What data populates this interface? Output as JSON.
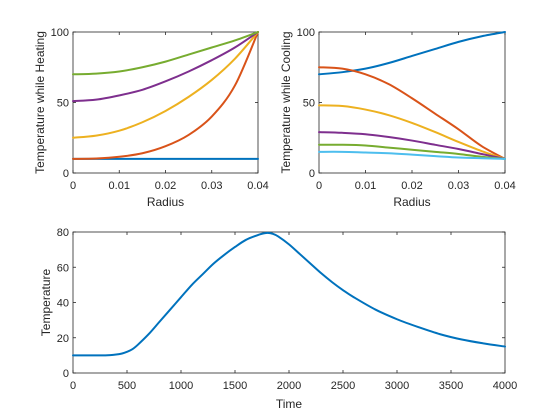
{
  "chart_data": [
    {
      "type": "line",
      "xlabel": "Radius",
      "ylabel": "Temperature while Heating",
      "xlim": [
        0,
        0.04
      ],
      "ylim": [
        0,
        100
      ],
      "xticks": [
        0,
        0.01,
        0.02,
        0.03,
        0.04
      ],
      "xtick_labels": [
        "0",
        "0.01",
        "0.02",
        "0.03",
        "0.04"
      ],
      "yticks": [
        0,
        50,
        100
      ],
      "ytick_labels": [
        "0",
        "50",
        "100"
      ],
      "grid": false,
      "x": [
        0,
        0.005,
        0.01,
        0.015,
        0.02,
        0.025,
        0.03,
        0.035,
        0.04
      ],
      "series": [
        {
          "color": "#0072BD",
          "values": [
            10,
            10,
            10,
            10,
            10,
            10,
            10,
            10,
            10
          ]
        },
        {
          "color": "#D95319",
          "values": [
            10,
            10.3,
            11.5,
            14,
            19,
            27,
            40,
            62,
            100
          ]
        },
        {
          "color": "#EDB120",
          "values": [
            25,
            26.5,
            30,
            36,
            44,
            54,
            66,
            81,
            100
          ]
        },
        {
          "color": "#7E2F8E",
          "values": [
            51,
            52,
            55,
            59,
            65,
            72,
            80,
            89,
            100
          ]
        },
        {
          "color": "#77AC30",
          "values": [
            70,
            70.5,
            72,
            75,
            79,
            84,
            89,
            94,
            100
          ]
        }
      ]
    },
    {
      "type": "line",
      "xlabel": "Radius",
      "ylabel": "Temperature while Cooling",
      "xlim": [
        0,
        0.04
      ],
      "ylim": [
        0,
        100
      ],
      "xticks": [
        0,
        0.01,
        0.02,
        0.03,
        0.04
      ],
      "xtick_labels": [
        "0",
        "0.01",
        "0.02",
        "0.03",
        "0.04"
      ],
      "yticks": [
        0,
        50,
        100
      ],
      "ytick_labels": [
        "0",
        "50",
        "100"
      ],
      "grid": false,
      "x": [
        0,
        0.005,
        0.01,
        0.015,
        0.02,
        0.025,
        0.03,
        0.035,
        0.04
      ],
      "series": [
        {
          "color": "#0072BD",
          "values": [
            70,
            71.5,
            74,
            78,
            83,
            88,
            93,
            97,
            100
          ]
        },
        {
          "color": "#D95319",
          "values": [
            75,
            74,
            70,
            63,
            53,
            42,
            31,
            19,
            10
          ]
        },
        {
          "color": "#EDB120",
          "values": [
            48,
            47.5,
            45,
            41,
            35.5,
            29,
            22,
            15.5,
            10
          ]
        },
        {
          "color": "#7E2F8E",
          "values": [
            29,
            28.5,
            27.5,
            25.5,
            23,
            20,
            17,
            13.5,
            10
          ]
        },
        {
          "color": "#77AC30",
          "values": [
            20,
            20,
            19.5,
            18,
            16.5,
            15,
            13.5,
            11.5,
            10
          ]
        },
        {
          "color": "#4DBEEE",
          "values": [
            15,
            15,
            14.5,
            14,
            13,
            12,
            11,
            10.5,
            10
          ]
        }
      ]
    },
    {
      "type": "line",
      "xlabel": "Time",
      "ylabel": "Temperature",
      "xlim": [
        0,
        4000
      ],
      "ylim": [
        0,
        80
      ],
      "xticks": [
        0,
        500,
        1000,
        1500,
        2000,
        2500,
        3000,
        3500,
        4000
      ],
      "xtick_labels": [
        "0",
        "500",
        "1000",
        "1500",
        "2000",
        "2500",
        "3000",
        "3500",
        "4000"
      ],
      "yticks": [
        0,
        20,
        40,
        60,
        80
      ],
      "ytick_labels": [
        "0",
        "20",
        "40",
        "60",
        "80"
      ],
      "grid": false,
      "x": [
        0,
        100,
        200,
        300,
        400,
        450,
        500,
        550,
        600,
        700,
        800,
        900,
        1000,
        1100,
        1200,
        1300,
        1400,
        1500,
        1600,
        1700,
        1750,
        1800,
        1850,
        1900,
        2000,
        2100,
        2200,
        2300,
        2400,
        2500,
        2600,
        2800,
        3000,
        3200,
        3400,
        3600,
        3800,
        4000
      ],
      "series": [
        {
          "color": "#0072BD",
          "values": [
            10,
            10,
            10,
            10,
            10.5,
            11,
            12,
            13.5,
            16,
            22,
            29,
            36,
            43,
            50,
            56,
            62,
            67,
            71.5,
            75.5,
            78,
            79,
            79.5,
            79,
            77.5,
            73,
            67.5,
            62,
            56.5,
            51.5,
            47,
            43,
            36,
            30.5,
            26,
            22,
            19,
            16.8,
            15
          ]
        }
      ]
    }
  ]
}
